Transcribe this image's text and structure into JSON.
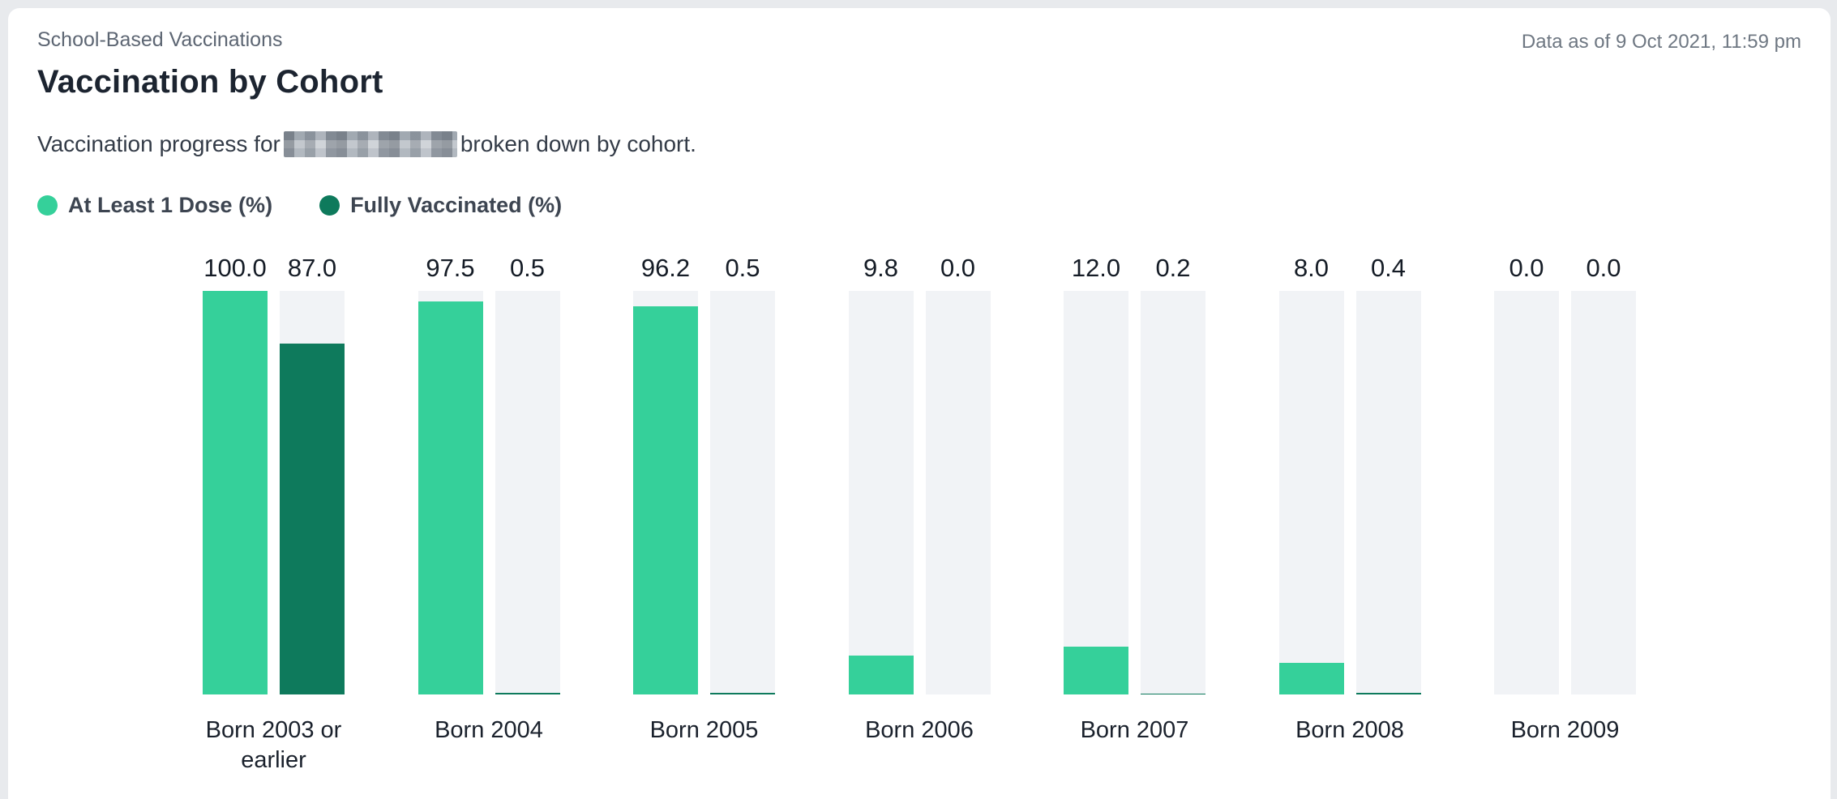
{
  "header": {
    "eyebrow": "School-Based Vaccinations",
    "title": "Vaccination by Cohort",
    "subtitle_prefix": "Vaccination progress for",
    "subtitle_suffix": "broken down by cohort.",
    "data_as_of": "Data as of 9 Oct 2021, 11:59 pm"
  },
  "legend": [
    {
      "label": "At Least 1 Dose (%)",
      "color": "#35d09a"
    },
    {
      "label": "Fully Vaccinated (%)",
      "color": "#0e7a5c"
    }
  ],
  "colors": {
    "accent_light_green": "#35d09a",
    "accent_dark_green": "#0e7a5c",
    "bar_track": "#f1f3f6",
    "card_background": "#ffffff",
    "page_background": "#e8eaed"
  },
  "chart_data": {
    "type": "bar",
    "title": "Vaccination by Cohort",
    "categories": [
      "Born 2003 or earlier",
      "Born 2004",
      "Born 2005",
      "Born 2006",
      "Born 2007",
      "Born 2008",
      "Born 2009"
    ],
    "series": [
      {
        "name": "At Least 1 Dose (%)",
        "color": "#35d09a",
        "values": [
          100.0,
          97.5,
          96.2,
          9.8,
          12.0,
          8.0,
          0.0
        ],
        "labels": [
          "100.0",
          "97.5",
          "96.2",
          "9.8",
          "12.0",
          "8.0",
          "0.0"
        ]
      },
      {
        "name": "Fully Vaccinated (%)",
        "color": "#0e7a5c",
        "values": [
          87.0,
          0.5,
          0.5,
          0.0,
          0.2,
          0.4,
          0.0
        ],
        "labels": [
          "87.0",
          "0.5",
          "0.5",
          "0.0",
          "0.2",
          "0.4",
          "0.0"
        ]
      }
    ],
    "ylim": [
      0,
      100
    ],
    "grid": false,
    "value_labels": true,
    "legend_position": "top-left",
    "track_color": "#f1f3f6"
  }
}
